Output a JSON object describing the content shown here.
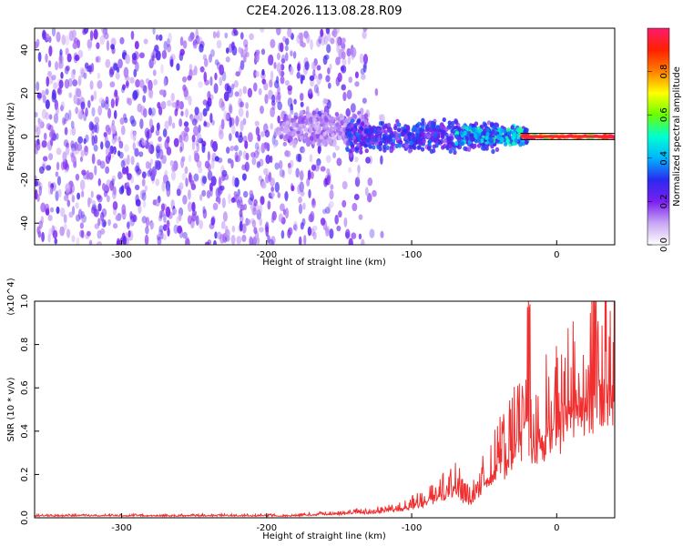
{
  "title": "C2E4.2026.113.08.28.R09",
  "chart_data": [
    {
      "type": "heatmap",
      "xlabel": "Height of straight line (km)",
      "ylabel": "Frequency (Hz)",
      "xlim": [
        -360,
        40
      ],
      "ylim": [
        -50,
        50
      ],
      "xticks": [
        -300,
        -200,
        -100,
        0
      ],
      "yticks": [
        -40,
        -20,
        0,
        20,
        40
      ],
      "colorbar": {
        "label": "Normalized spectral amplitude",
        "range": [
          0,
          1
        ],
        "ticks": [
          "0.0",
          "0.2",
          "0.4",
          "0.6",
          "0.8"
        ],
        "colors": [
          "#ffffff",
          "#c9a6f4",
          "#7a1ff0",
          "#2a2af0",
          "#00b4ff",
          "#00ffd0",
          "#6aff00",
          "#ffff00",
          "#ff8000",
          "#ff2000",
          "#ff1a6e"
        ]
      },
      "features": [
        {
          "x_range": [
            -360,
            -130
          ],
          "freq_range": [
            -50,
            50
          ],
          "amplitude": 0.05
        },
        {
          "x_range": [
            -190,
            -130
          ],
          "freq_range": [
            -5,
            12
          ],
          "amplitude": 0.15
        },
        {
          "x_range": [
            -145,
            -40
          ],
          "freq_range": [
            -8,
            8
          ],
          "amplitude": 0.3
        },
        {
          "x_range": [
            -70,
            -20
          ],
          "freq_range": [
            -4,
            5
          ],
          "amplitude": 0.45
        },
        {
          "x_range": [
            -25,
            40
          ],
          "freq_range": [
            -1,
            1
          ],
          "amplitude": 1.0
        }
      ]
    },
    {
      "type": "line",
      "xlabel": "Height of straight line (km)",
      "ylabel": "SNR (10 * v/v)",
      "y_multiplier": "(x10^4)",
      "xlim": [
        -360,
        40
      ],
      "ylim": [
        0,
        1.0
      ],
      "xticks": [
        -300,
        -200,
        -100,
        0
      ],
      "yticks": [
        "0.0",
        "0.2",
        "0.4",
        "0.6",
        "0.8",
        "1.0"
      ],
      "color": "#f03030",
      "series": [
        {
          "x": [
            -360,
            -340,
            -320,
            -300,
            -280,
            -260,
            -240,
            -220,
            -200,
            -180,
            -160,
            -150,
            -140,
            -130,
            -120,
            -110,
            -100,
            -95,
            -90,
            -85,
            -80,
            -75,
            -70,
            -65,
            -60,
            -55,
            -50,
            -45,
            -40,
            -35,
            -30,
            -25,
            -22,
            -20,
            -18,
            -15,
            -10,
            -5,
            0,
            5,
            10,
            15,
            20,
            25,
            30,
            35,
            40
          ],
          "y": [
            0.01,
            0.01,
            0.01,
            0.01,
            0.01,
            0.01,
            0.01,
            0.01,
            0.01,
            0.01,
            0.02,
            0.02,
            0.03,
            0.03,
            0.04,
            0.05,
            0.07,
            0.08,
            0.1,
            0.12,
            0.14,
            0.16,
            0.2,
            0.13,
            0.1,
            0.15,
            0.22,
            0.26,
            0.32,
            0.35,
            0.42,
            0.5,
            0.55,
            0.62,
            0.4,
            0.45,
            0.5,
            0.54,
            0.55,
            0.6,
            0.65,
            0.7,
            0.74,
            0.77,
            0.8,
            0.83,
            0.82
          ]
        }
      ]
    }
  ]
}
